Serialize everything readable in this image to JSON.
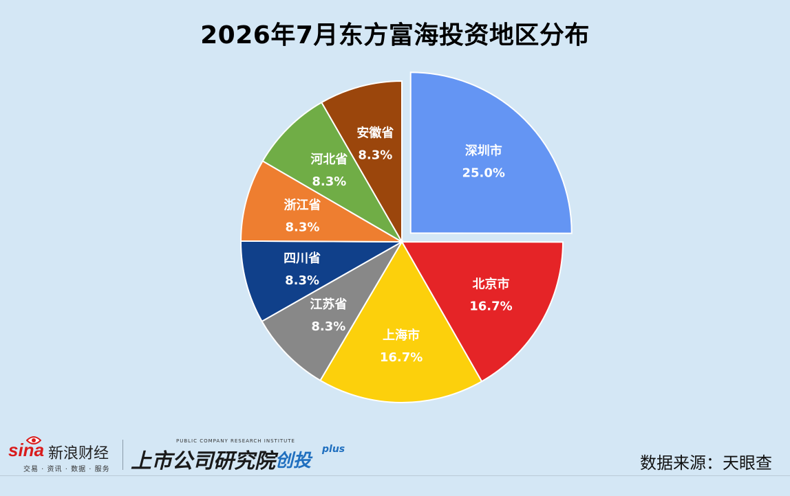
{
  "chart_data": {
    "type": "pie",
    "title": "2026年7月东方富海投资地区分布",
    "slices": [
      {
        "label": "深圳市",
        "value": 25.0,
        "display": "25.0%",
        "color": "#6495f3",
        "exploded": true
      },
      {
        "label": "北京市",
        "value": 16.7,
        "display": "16.7%",
        "color": "#e52427",
        "exploded": false
      },
      {
        "label": "上海市",
        "value": 16.7,
        "display": "16.7%",
        "color": "#fcd00c",
        "exploded": false
      },
      {
        "label": "江苏省",
        "value": 8.3,
        "display": "8.3%",
        "color": "#888888",
        "exploded": false
      },
      {
        "label": "四川省",
        "value": 8.3,
        "display": "8.3%",
        "color": "#10408a",
        "exploded": false
      },
      {
        "label": "浙江省",
        "value": 8.3,
        "display": "8.3%",
        "color": "#ee7e30",
        "exploded": false
      },
      {
        "label": "河北省",
        "value": 8.3,
        "display": "8.3%",
        "color": "#70ad46",
        "exploded": false
      },
      {
        "label": "安徽省",
        "value": 8.3,
        "display": "8.3%",
        "color": "#9b460c",
        "exploded": false
      }
    ],
    "start": "12 o'clock",
    "direction": "clockwise",
    "legend": "none"
  },
  "source": "数据来源：天眼查",
  "logos": {
    "sina_brand": "sina",
    "sina_name": "新浪财经",
    "sina_tagline": "交易 · 资讯 · 数据 · 服务",
    "institute_en": "PUBLIC COMPANY RESEARCH INSTITUTE",
    "institute_cn": "上市公司研究院",
    "institute_sub": "创投",
    "institute_plus": "plus",
    "sina_icon": "eye-icon"
  }
}
